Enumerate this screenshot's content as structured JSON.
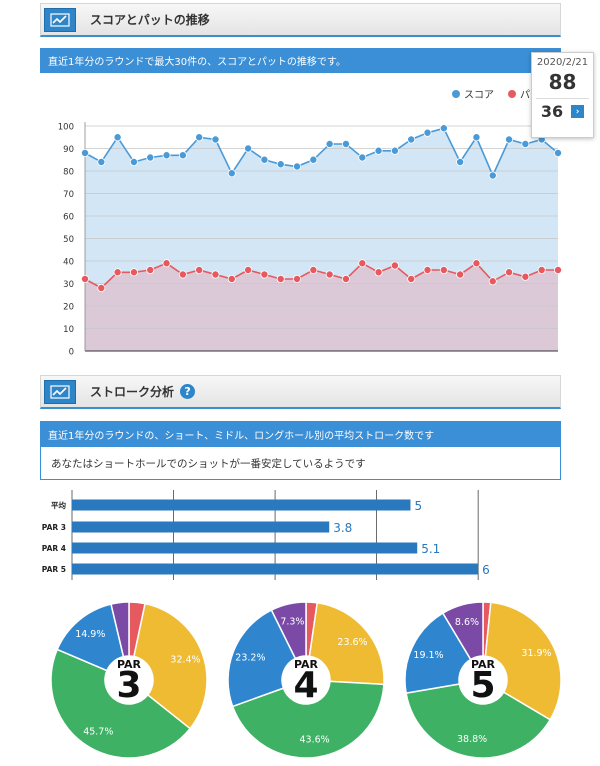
{
  "section1": {
    "title": "スコアとパットの推移",
    "info": "直近1年分のラウンドで最大30件の、スコアとパットの推移です。"
  },
  "tooltip": {
    "date": "2020/2/21",
    "score": "88",
    "putt": "36",
    "arrow": "›"
  },
  "section2": {
    "title": "ストローク分析",
    "help": "?",
    "info": "直近1年分のラウンドの、ショート、ミドル、ロングホール別の平均ストローク数です",
    "message": "あなたはショートホールでのショットが一番安定しているようです"
  },
  "colors": {
    "score_line": "#4a9ad8",
    "score_fill": "#d3e6f5",
    "putt_line": "#e6595f",
    "putt_fill": "#dcc9d8",
    "bar": "#2a78bd",
    "par3": "#efbb32",
    "par4": "#3eb164",
    "par5": "#2f86cf",
    "birdie": "#7b4aa6",
    "eagle": "#e6595f"
  },
  "chart_data": [
    {
      "type": "line",
      "ylim": [
        0,
        100
      ],
      "yticks": [
        0,
        10,
        20,
        30,
        40,
        50,
        60,
        70,
        80,
        90,
        100
      ],
      "grid": true,
      "legend_position": "top-right",
      "series": [
        {
          "name": "スコア",
          "values": [
            88,
            84,
            95,
            84,
            86,
            87,
            87,
            95,
            94,
            79,
            90,
            85,
            83,
            82,
            85,
            92,
            92,
            86,
            89,
            89,
            94,
            97,
            99,
            84,
            95,
            78,
            94,
            92,
            94,
            88
          ]
        },
        {
          "name": "パット",
          "values": [
            32,
            28,
            35,
            35,
            36,
            39,
            34,
            36,
            34,
            32,
            36,
            34,
            32,
            32,
            36,
            34,
            32,
            39,
            35,
            38,
            32,
            36,
            36,
            34,
            39,
            31,
            35,
            33,
            36,
            36
          ]
        }
      ]
    },
    {
      "type": "bar",
      "orientation": "horizontal",
      "categories": [
        "平均",
        "PAR 3",
        "PAR 4",
        "PAR 5"
      ],
      "values": [
        5,
        3.8,
        5.1,
        6
      ],
      "value_labels": [
        "5",
        "3.8",
        "5.1",
        "6"
      ],
      "xlim": [
        0,
        6.5
      ],
      "grid": true
    },
    {
      "type": "pie",
      "center_label": {
        "top": "PAR",
        "number": "3"
      },
      "slices": [
        {
          "key": "eagle",
          "value": 3.3,
          "label": ""
        },
        {
          "key": "par",
          "value": 32.4,
          "label": "32.4%"
        },
        {
          "key": "bogey",
          "value": 45.7,
          "label": "45.7%"
        },
        {
          "key": "double",
          "value": 14.9,
          "label": "14.9%"
        },
        {
          "key": "birdie",
          "value": 3.7,
          "label": ""
        }
      ]
    },
    {
      "type": "pie",
      "center_label": {
        "top": "PAR",
        "number": "4"
      },
      "slices": [
        {
          "key": "eagle",
          "value": 2.3,
          "label": ""
        },
        {
          "key": "par",
          "value": 23.6,
          "label": "23.6%"
        },
        {
          "key": "bogey",
          "value": 43.6,
          "label": "43.6%"
        },
        {
          "key": "double",
          "value": 23.2,
          "label": "23.2%"
        },
        {
          "key": "birdie",
          "value": 7.3,
          "label": "7.3%"
        }
      ]
    },
    {
      "type": "pie",
      "center_label": {
        "top": "PAR",
        "number": "5"
      },
      "slices": [
        {
          "key": "eagle",
          "value": 1.6,
          "label": ""
        },
        {
          "key": "par",
          "value": 31.9,
          "label": "31.9%"
        },
        {
          "key": "bogey",
          "value": 38.8,
          "label": "38.8%"
        },
        {
          "key": "double",
          "value": 19.1,
          "label": "19.1%"
        },
        {
          "key": "birdie",
          "value": 8.6,
          "label": "8.6%"
        }
      ]
    }
  ]
}
